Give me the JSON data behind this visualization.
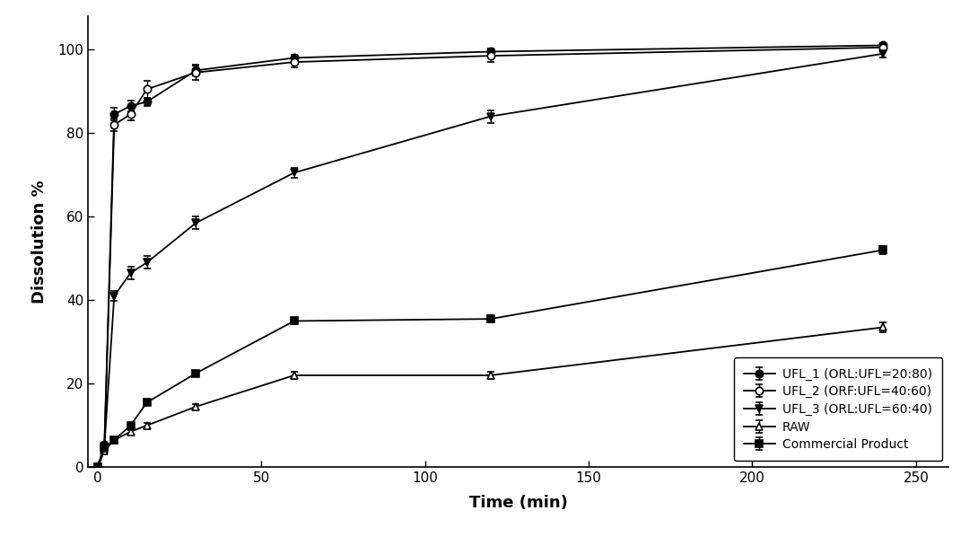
{
  "title": "",
  "xlabel": "Time (min)",
  "ylabel": "Dissolution %",
  "xlim": [
    -3,
    260
  ],
  "ylim": [
    0,
    108
  ],
  "xticks": [
    0,
    50,
    100,
    150,
    200,
    250
  ],
  "yticks": [
    0,
    20,
    40,
    60,
    80,
    100
  ],
  "background_color": "#ffffff",
  "series": [
    {
      "label": "UFL_1 (ORL:UFL=20:80)",
      "x": [
        0,
        2,
        5,
        10,
        15,
        30,
        60,
        120,
        240
      ],
      "y": [
        0,
        5.5,
        84.5,
        86.5,
        87.5,
        95.0,
        98.0,
        99.5,
        101.0
      ],
      "yerr": [
        0,
        0.4,
        1.5,
        1.2,
        1.0,
        1.2,
        0.8,
        0.8,
        0.6
      ],
      "marker": "o",
      "mfc": "black",
      "mec": "black"
    },
    {
      "label": "UFL_2 (ORF:UFL=40:60)",
      "x": [
        0,
        2,
        5,
        10,
        15,
        30,
        60,
        120,
        240
      ],
      "y": [
        0,
        5.0,
        82.0,
        84.5,
        90.5,
        94.5,
        97.0,
        98.5,
        100.5
      ],
      "yerr": [
        0,
        0.4,
        1.5,
        1.5,
        2.0,
        1.8,
        1.2,
        1.5,
        0.8
      ],
      "marker": "o",
      "mfc": "white",
      "mec": "black"
    },
    {
      "label": "UFL_3 (ORL:UFL=60:40)",
      "x": [
        0,
        2,
        5,
        10,
        15,
        30,
        60,
        120,
        240
      ],
      "y": [
        0,
        5.0,
        41.0,
        46.5,
        49.0,
        58.5,
        70.5,
        84.0,
        99.0
      ],
      "yerr": [
        0,
        0.4,
        1.2,
        1.5,
        1.5,
        1.5,
        1.2,
        1.5,
        0.8
      ],
      "marker": "v",
      "mfc": "black",
      "mec": "black"
    },
    {
      "label": "RAW",
      "x": [
        0,
        2,
        5,
        10,
        15,
        30,
        60,
        120,
        240
      ],
      "y": [
        0,
        4.0,
        6.5,
        8.5,
        10.0,
        14.5,
        22.0,
        22.0,
        33.5
      ],
      "yerr": [
        0,
        0.3,
        0.3,
        0.4,
        0.5,
        0.5,
        0.8,
        0.8,
        1.2
      ],
      "marker": "^",
      "mfc": "white",
      "mec": "black"
    },
    {
      "label": "Commercial Product",
      "x": [
        0,
        2,
        5,
        10,
        15,
        30,
        60,
        120,
        240
      ],
      "y": [
        0,
        4.5,
        6.5,
        10.0,
        15.5,
        22.5,
        35.0,
        35.5,
        52.0
      ],
      "yerr": [
        0,
        0.3,
        0.3,
        0.5,
        0.5,
        0.5,
        0.8,
        0.8,
        1.0
      ],
      "marker": "s",
      "mfc": "black",
      "mec": "black"
    }
  ]
}
